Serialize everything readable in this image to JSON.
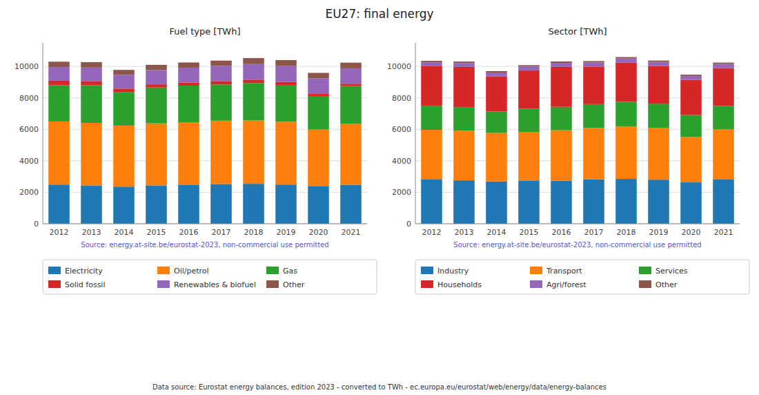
{
  "title": "EU27: final energy",
  "annotations": [
    "Data source: Eurostat energy balances, edition 2023 - converted to TWh - ec.europa.eu/eurostat/web/energy/data/energy-balances"
  ],
  "chart_data": [
    {
      "type": "bar",
      "stacked": true,
      "grid": true,
      "title": "Fuel type [TWh]",
      "annotations": [
        "Source: energy.at-site.be/eurostat-2023, non-commercial use permitted"
      ],
      "categories": [
        "2012",
        "2013",
        "2014",
        "2015",
        "2016",
        "2017",
        "2018",
        "2019",
        "2020",
        "2021"
      ],
      "ylim": [
        0,
        11500
      ],
      "yticks": [
        0,
        2000,
        4000,
        6000,
        8000,
        10000
      ],
      "series": [
        {
          "name": "Electricity",
          "color": "#1f77b4",
          "values": [
            2490,
            2440,
            2360,
            2440,
            2460,
            2520,
            2540,
            2490,
            2370,
            2480
          ]
        },
        {
          "name": "Oil/petrol",
          "color": "#ff7f0e",
          "values": [
            4010,
            3970,
            3880,
            3940,
            3990,
            4030,
            4020,
            3990,
            3620,
            3880
          ]
        },
        {
          "name": "Gas",
          "color": "#2ca02c",
          "values": [
            2300,
            2390,
            2110,
            2280,
            2330,
            2300,
            2380,
            2340,
            2130,
            2390
          ]
        },
        {
          "name": "Solid fossil",
          "color": "#d62728",
          "values": [
            290,
            270,
            240,
            200,
            200,
            220,
            220,
            190,
            130,
            150
          ]
        },
        {
          "name": "Renewables & biofuel",
          "color": "#9467bd",
          "values": [
            870,
            860,
            870,
            910,
            940,
            960,
            990,
            1010,
            1000,
            980
          ]
        },
        {
          "name": "Other",
          "color": "#8c564b",
          "values": [
            340,
            340,
            320,
            330,
            330,
            340,
            380,
            380,
            340,
            360
          ]
        }
      ]
    },
    {
      "type": "bar",
      "stacked": true,
      "grid": true,
      "title": "Sector [TWh]",
      "annotations": [
        "Source: energy.at-site.be/eurostat-2023, non-commercial use permitted"
      ],
      "categories": [
        "2012",
        "2013",
        "2014",
        "2015",
        "2016",
        "2017",
        "2018",
        "2019",
        "2020",
        "2021"
      ],
      "ylim": [
        0,
        11500
      ],
      "yticks": [
        0,
        2000,
        4000,
        6000,
        8000,
        10000
      ],
      "series": [
        {
          "name": "Industry",
          "color": "#1f77b4",
          "values": [
            2810,
            2760,
            2690,
            2720,
            2740,
            2820,
            2850,
            2800,
            2630,
            2810
          ]
        },
        {
          "name": "Transport",
          "color": "#ff7f0e",
          "values": [
            3160,
            3160,
            3080,
            3120,
            3200,
            3270,
            3330,
            3300,
            2890,
            3190
          ]
        },
        {
          "name": "Services",
          "color": "#2ca02c",
          "values": [
            1540,
            1490,
            1360,
            1470,
            1490,
            1510,
            1570,
            1530,
            1390,
            1490
          ]
        },
        {
          "name": "Households",
          "color": "#d62728",
          "values": [
            2500,
            2560,
            2240,
            2430,
            2540,
            2390,
            2490,
            2390,
            2240,
            2400
          ]
        },
        {
          "name": "Agri/forest",
          "color": "#9467bd",
          "values": [
            250,
            245,
            240,
            250,
            255,
            260,
            265,
            265,
            240,
            265
          ]
        },
        {
          "name": "Other",
          "color": "#8c564b",
          "values": [
            95,
            95,
            90,
            90,
            90,
            90,
            90,
            90,
            85,
            90
          ]
        }
      ]
    }
  ]
}
